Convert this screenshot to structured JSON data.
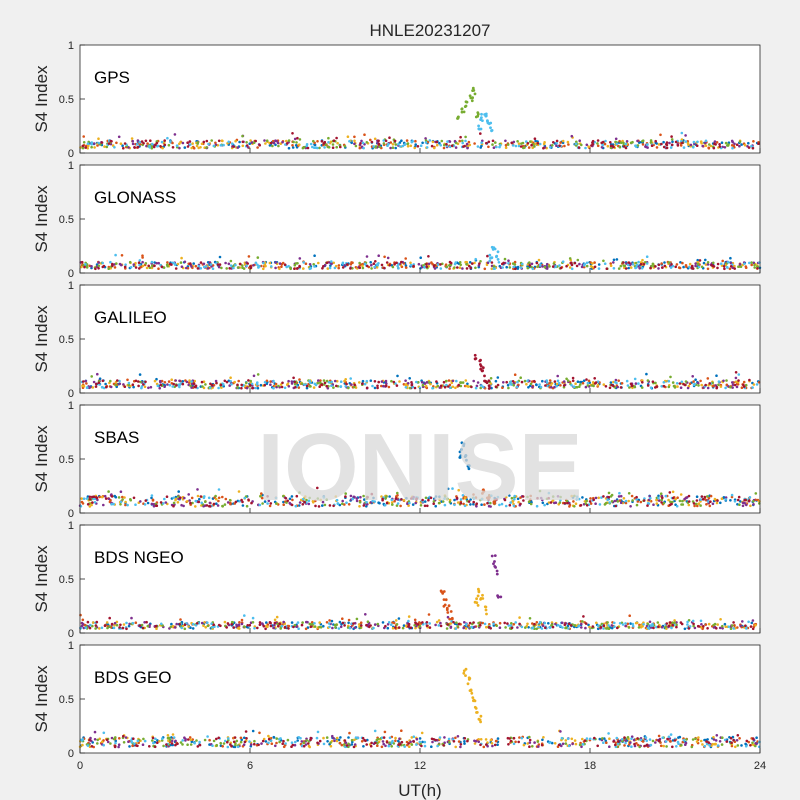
{
  "chart_data": {
    "type": "scatter",
    "title": "HNLE20231207",
    "xlabel": "UT(h)",
    "ylabel": "S4 Index",
    "xlim": [
      0,
      24
    ],
    "ylim": [
      0,
      1
    ],
    "xticks": [
      "0",
      "6",
      "12",
      "18",
      "24"
    ],
    "yticks": [
      "0",
      "0.5",
      "1"
    ],
    "grid": false,
    "watermark": "IONISE",
    "colors": [
      "#0072bd",
      "#d95319",
      "#edb120",
      "#7e2f8e",
      "#77ac30",
      "#4dbeee",
      "#a2142f"
    ],
    "panels": [
      {
        "label": "GPS",
        "baseline": 0.08,
        "events": [
          {
            "x": [
              13.3,
              13.5,
              13.6,
              13.8,
              13.9,
              14.0
            ],
            "y": [
              0.35,
              0.42,
              0.48,
              0.55,
              0.62,
              0.38
            ]
          },
          {
            "x": [
              14.1,
              14.2,
              14.3,
              14.4,
              14.5
            ],
            "y": [
              0.3,
              0.38,
              0.42,
              0.34,
              0.28
            ]
          }
        ]
      },
      {
        "label": "GLONASS",
        "baseline": 0.07,
        "events": [
          {
            "x": [
              14.5,
              14.6,
              14.7
            ],
            "y": [
              0.18,
              0.28,
              0.2
            ]
          }
        ]
      },
      {
        "label": "GALILEO",
        "baseline": 0.08,
        "events": [
          {
            "x": [
              14.0,
              14.1,
              14.2,
              14.3,
              14.4
            ],
            "y": [
              0.38,
              0.32,
              0.25,
              0.18,
              0.12
            ]
          }
        ]
      },
      {
        "label": "SBAS",
        "baseline": 0.11,
        "events": [
          {
            "x": [
              13.4,
              13.5,
              13.6,
              13.7
            ],
            "y": [
              0.58,
              0.65,
              0.55,
              0.45
            ]
          },
          {
            "x": [
              14.2,
              14.4,
              14.6
            ],
            "y": [
              0.22,
              0.18,
              0.15
            ]
          }
        ]
      },
      {
        "label": "BDS NGEO",
        "baseline": 0.07,
        "events": [
          {
            "x": [
              12.8,
              12.9,
              13.0,
              13.1
            ],
            "y": [
              0.4,
              0.32,
              0.26,
              0.2
            ]
          },
          {
            "x": [
              14.0,
              14.1,
              14.2,
              14.3
            ],
            "y": [
              0.32,
              0.42,
              0.36,
              0.25
            ]
          },
          {
            "x": [
              14.6,
              14.7,
              14.8
            ],
            "y": [
              0.72,
              0.62,
              0.4
            ]
          }
        ]
      },
      {
        "label": "BDS GEO",
        "baseline": 0.1,
        "events": [
          {
            "x": [
              13.6,
              13.7,
              13.8,
              13.9,
              14.0,
              14.1
            ],
            "y": [
              0.78,
              0.7,
              0.62,
              0.52,
              0.45,
              0.35
            ]
          }
        ]
      }
    ]
  }
}
